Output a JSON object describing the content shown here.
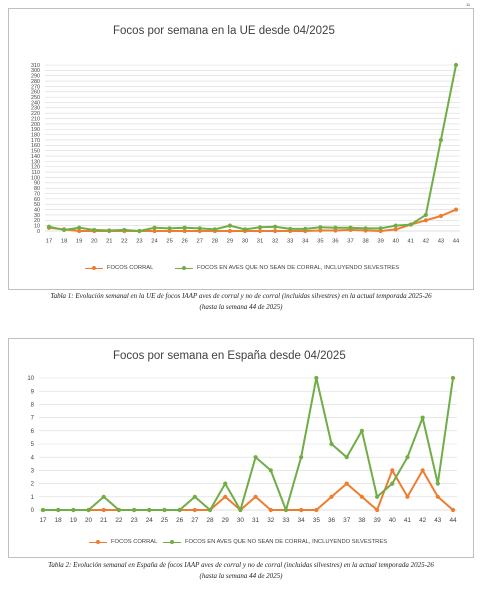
{
  "page": {
    "corner_mark": "11"
  },
  "charts": [
    {
      "title": "Focos por semana en la UE desde 04/2025",
      "caption_line1": "Tabla 1: Evolución semanal en la UE de focos IAAP aves de corral y no de corral (incluidas silvestres) en la actual temporada 2025-26",
      "caption_line2": "(hasta la semana 44 de 2025)"
    },
    {
      "title": "Focos por semana en España desde 04/2025",
      "caption_line1": "Tabla 2: Evolución semanal en España de focos IAAP aves de corral y no de corral (incluidas silvestres) en la actual temporada 2025-26",
      "caption_line2": "(hasta la semana 44 de 2025)"
    }
  ],
  "chart_data": [
    {
      "type": "line",
      "title": "Focos por semana en la UE desde 04/2025",
      "xlabel": "",
      "ylabel": "",
      "x": [
        17,
        18,
        19,
        20,
        21,
        22,
        23,
        24,
        25,
        26,
        27,
        28,
        29,
        30,
        31,
        32,
        33,
        34,
        35,
        36,
        37,
        38,
        39,
        40,
        41,
        42,
        43,
        44
      ],
      "ylim": [
        0,
        310
      ],
      "yticks": [
        0,
        10,
        20,
        30,
        40,
        50,
        60,
        70,
        80,
        90,
        100,
        110,
        120,
        130,
        140,
        150,
        160,
        170,
        180,
        190,
        200,
        210,
        220,
        230,
        240,
        250,
        260,
        270,
        280,
        290,
        300,
        310
      ],
      "grid": true,
      "legend_position": "bottom",
      "series": [
        {
          "name": "FOCOS CORRAL",
          "color": "#ED7D31",
          "values": [
            6,
            3,
            0,
            0,
            0,
            0,
            0,
            0,
            0,
            0,
            0,
            0,
            0,
            0,
            0,
            0,
            0,
            0,
            1,
            1,
            2,
            1,
            0,
            3,
            12,
            20,
            28,
            40
          ]
        },
        {
          "name": "FOCOS EN AVES QUE NO SEAN DE CORRAL, INCLUYENDO SILVESTRES",
          "color": "#70AD47",
          "values": [
            8,
            2,
            6,
            2,
            1,
            2,
            0,
            6,
            5,
            6,
            5,
            3,
            10,
            3,
            7,
            8,
            4,
            4,
            7,
            6,
            6,
            5,
            5,
            10,
            12,
            30,
            170,
            310
          ]
        }
      ]
    },
    {
      "type": "line",
      "title": "Focos por semana en España desde 04/2025",
      "xlabel": "",
      "ylabel": "",
      "x": [
        17,
        18,
        19,
        20,
        21,
        22,
        23,
        24,
        25,
        26,
        27,
        28,
        29,
        30,
        31,
        32,
        33,
        34,
        35,
        36,
        37,
        38,
        39,
        40,
        41,
        42,
        43,
        44
      ],
      "ylim": [
        0,
        10
      ],
      "yticks": [
        0,
        1,
        2,
        3,
        4,
        5,
        6,
        7,
        8,
        9,
        10
      ],
      "grid": true,
      "legend_position": "bottom",
      "series": [
        {
          "name": "FOCOS CORRAL",
          "color": "#ED7D31",
          "values": [
            0,
            0,
            0,
            0,
            0,
            0,
            0,
            0,
            0,
            0,
            0,
            0,
            1,
            0,
            1,
            0,
            0,
            0,
            0,
            1,
            2,
            1,
            0,
            3,
            1,
            3,
            1,
            0
          ]
        },
        {
          "name": "FOCOS EN AVES QUE NO SEAN DE CORRAL, INCLUYENDO SILVESTRES",
          "color": "#70AD47",
          "values": [
            0,
            0,
            0,
            0,
            1,
            0,
            0,
            0,
            0,
            0,
            1,
            0,
            2,
            0,
            4,
            3,
            0,
            4,
            10,
            5,
            4,
            6,
            1,
            2,
            4,
            7,
            2,
            10
          ]
        }
      ]
    }
  ]
}
